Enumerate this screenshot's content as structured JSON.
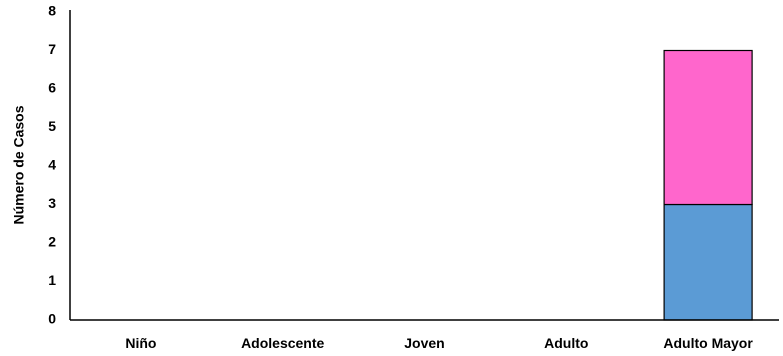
{
  "chart_data": {
    "type": "bar",
    "stacked": true,
    "categories": [
      "Niño",
      "Adolescente",
      "Joven",
      "Adulto",
      "Adulto Mayor"
    ],
    "series": [
      {
        "values": [
          0,
          0,
          0,
          0,
          3
        ],
        "color": "#5b9bd5"
      },
      {
        "values": [
          0,
          0,
          0,
          0,
          4
        ],
        "color": "#ff66cc"
      }
    ],
    "yticks": [
      "0",
      "1",
      "2",
      "3",
      "4",
      "5",
      "6",
      "7",
      "8"
    ],
    "title": "",
    "xlabel": "",
    "ylabel": "Número de Casos",
    "ylim": [
      0,
      8
    ],
    "grid": false,
    "legend": "none",
    "axis_color": "#000000"
  }
}
